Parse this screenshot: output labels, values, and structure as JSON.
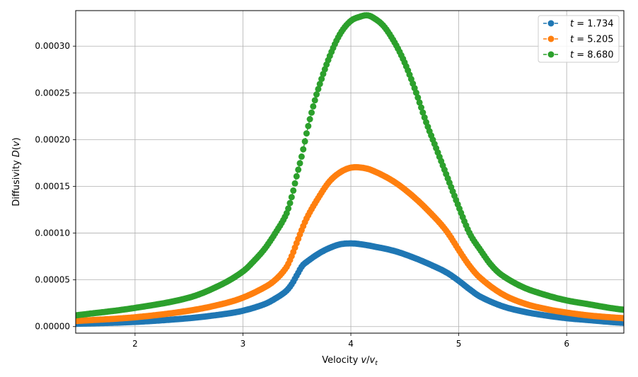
{
  "chart_data": {
    "type": "scatter",
    "xlabel": "Velocity v/v_t",
    "ylabel": "Diffusivity D(v)",
    "xlim": [
      1.45,
      6.53
    ],
    "ylim": [
      -7e-06,
      0.000338
    ],
    "xticks": [
      2,
      3,
      4,
      5,
      6
    ],
    "xtick_labels": [
      "2",
      "3",
      "4",
      "5",
      "6"
    ],
    "yticks": [
      0,
      5e-05,
      0.0001,
      0.00015,
      0.0002,
      0.00025,
      0.0003
    ],
    "ytick_labels": [
      "0.00000",
      "0.00005",
      "0.00010",
      "0.00015",
      "0.00020",
      "0.00025",
      "0.00030"
    ],
    "grid": true,
    "legend_position": "top-right",
    "series": [
      {
        "name": "t = 1.734",
        "t_value": "1.734",
        "color": "#1f77b4",
        "x": [
          1.45,
          2.0,
          2.5,
          2.8,
          3.0,
          3.2,
          3.3,
          3.4,
          3.45,
          3.5,
          3.55,
          3.6,
          3.7,
          3.8,
          3.9,
          4.0,
          4.1,
          4.2,
          4.4,
          4.6,
          4.8,
          4.9,
          5.0,
          5.1,
          5.2,
          5.4,
          5.6,
          5.8,
          6.0,
          6.2,
          6.4,
          6.53
        ],
        "y": [
          3e-06,
          5e-06,
          9e-06,
          1.3e-05,
          1.7e-05,
          2.4e-05,
          3e-05,
          3.8e-05,
          4.5e-05,
          5.5e-05,
          6.5e-05,
          7e-05,
          7.8e-05,
          8.4e-05,
          8.8e-05,
          8.9e-05,
          8.8e-05,
          8.6e-05,
          8.1e-05,
          7.3e-05,
          6.3e-05,
          5.7e-05,
          4.9e-05,
          4e-05,
          3.2e-05,
          2.2e-05,
          1.6e-05,
          1.2e-05,
          9e-06,
          7e-06,
          5e-06,
          4e-06
        ]
      },
      {
        "name": "t = 5.205",
        "t_value": "5.205",
        "color": "#ff7f0e",
        "x": [
          1.45,
          2.0,
          2.5,
          2.8,
          3.0,
          3.2,
          3.3,
          3.4,
          3.45,
          3.5,
          3.55,
          3.6,
          3.7,
          3.8,
          3.9,
          4.0,
          4.1,
          4.2,
          4.4,
          4.6,
          4.8,
          4.9,
          5.0,
          5.1,
          5.2,
          5.4,
          5.6,
          5.8,
          6.0,
          6.2,
          6.4,
          6.53
        ],
        "y": [
          6e-06,
          1e-05,
          1.7e-05,
          2.4e-05,
          3.1e-05,
          4.2e-05,
          5e-05,
          6.3e-05,
          7.5e-05,
          9e-05,
          0.000105,
          0.000118,
          0.000138,
          0.000155,
          0.000165,
          0.00017,
          0.00017,
          0.000167,
          0.000155,
          0.000137,
          0.000114,
          0.0001,
          8.2e-05,
          6.5e-05,
          5.2e-05,
          3.5e-05,
          2.5e-05,
          1.9e-05,
          1.5e-05,
          1.2e-05,
          1e-05,
          9e-06
        ]
      },
      {
        "name": "t = 8.680",
        "t_value": "8.680",
        "color": "#2ca02c",
        "x": [
          1.45,
          2.0,
          2.5,
          2.8,
          3.0,
          3.1,
          3.2,
          3.3,
          3.4,
          3.45,
          3.5,
          3.55,
          3.6,
          3.65,
          3.7,
          3.8,
          3.9,
          4.0,
          4.1,
          4.15,
          4.2,
          4.3,
          4.4,
          4.5,
          4.6,
          4.7,
          4.8,
          4.9,
          5.0,
          5.1,
          5.2,
          5.3,
          5.4,
          5.6,
          5.8,
          6.0,
          6.2,
          6.4,
          6.53
        ],
        "y": [
          1.2e-05,
          2e-05,
          3.1e-05,
          4.5e-05,
          5.9e-05,
          7e-05,
          8.3e-05,
          0.0001,
          0.00012,
          0.000138,
          0.000162,
          0.000185,
          0.000212,
          0.000235,
          0.000255,
          0.000288,
          0.000313,
          0.000327,
          0.000332,
          0.000333,
          0.000331,
          0.000322,
          0.000305,
          0.000282,
          0.000252,
          0.000218,
          0.000188,
          0.000158,
          0.000128,
          0.0001,
          8.2e-05,
          6.6e-05,
          5.5e-05,
          4.2e-05,
          3.4e-05,
          2.8e-05,
          2.4e-05,
          2e-05,
          1.8e-05
        ]
      }
    ]
  }
}
